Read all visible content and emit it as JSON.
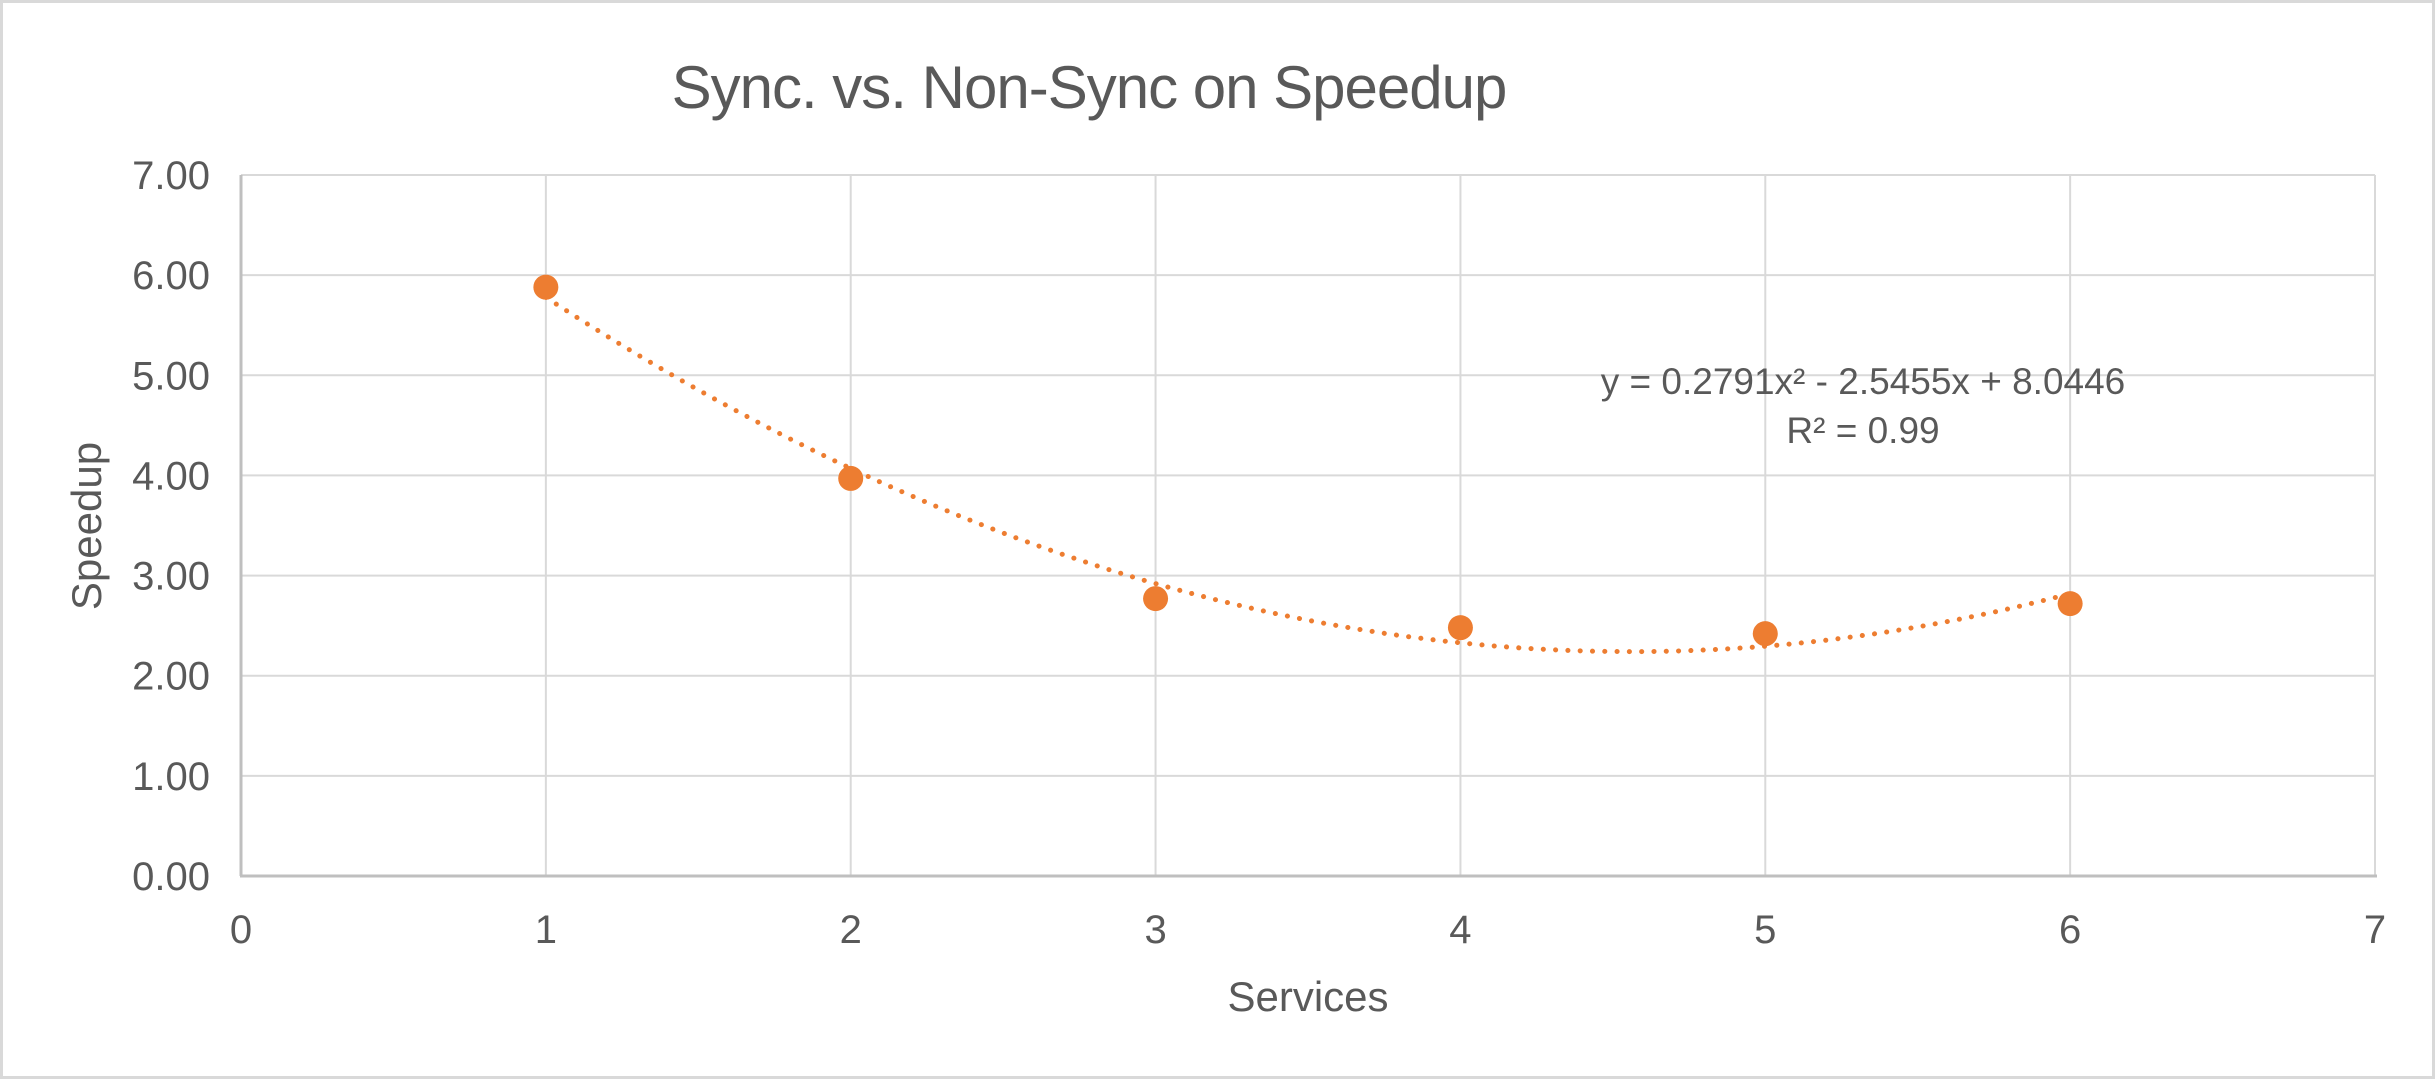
{
  "colors": {
    "text": "#595959",
    "gridline": "#d9d9d9",
    "axis_line": "#bfbfbf",
    "accent_orange": "#ED7D31",
    "frame_border": "#d9d9d9",
    "background": "#ffffff"
  },
  "chart_data": {
    "type": "scatter",
    "title": "Sync. vs. Non-Sync on Speedup",
    "xlabel": "Services",
    "ylabel": "Speedup",
    "xlim": [
      0,
      7
    ],
    "ylim": [
      0,
      7
    ],
    "grid": true,
    "legend": "none",
    "x_ticks": [
      {
        "value": 0,
        "label": "0"
      },
      {
        "value": 1,
        "label": "1"
      },
      {
        "value": 2,
        "label": "2"
      },
      {
        "value": 3,
        "label": "3"
      },
      {
        "value": 4,
        "label": "4"
      },
      {
        "value": 5,
        "label": "5"
      },
      {
        "value": 6,
        "label": "6"
      },
      {
        "value": 7,
        "label": "7"
      }
    ],
    "y_ticks": [
      {
        "value": 0,
        "label": "0.00"
      },
      {
        "value": 1,
        "label": "1.00"
      },
      {
        "value": 2,
        "label": "2.00"
      },
      {
        "value": 3,
        "label": "3.00"
      },
      {
        "value": 4,
        "label": "4.00"
      },
      {
        "value": 5,
        "label": "5.00"
      },
      {
        "value": 6,
        "label": "6.00"
      },
      {
        "value": 7,
        "label": "7.00"
      }
    ],
    "series": [
      {
        "name": "Speedup",
        "marker": "circle",
        "marker_color": "#ED7D31",
        "x": [
          1,
          2,
          3,
          4,
          5,
          6
        ],
        "y": [
          5.88,
          3.97,
          2.77,
          2.48,
          2.42,
          2.72
        ]
      }
    ],
    "trendline": {
      "type": "polynomial",
      "order": 2,
      "coefficients": {
        "a": 0.2791,
        "b": -2.5455,
        "c": 8.0446
      },
      "x_range": [
        1,
        6
      ],
      "style": "dotted",
      "color": "#ED7D31",
      "equation_label": "y = 0.2791x² - 2.5455x + 8.0446",
      "r_squared_label": "R² = 0.99"
    }
  }
}
